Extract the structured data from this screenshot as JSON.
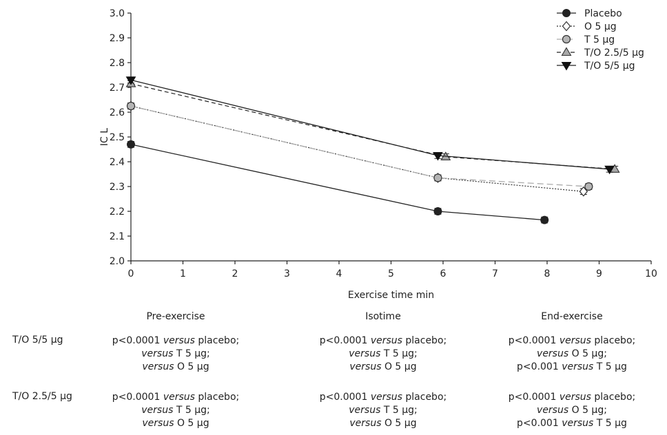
{
  "chart_data": {
    "type": "line",
    "xlabel": "Exercise time min",
    "ylabel": "IC L",
    "xlim": [
      0,
      10
    ],
    "ylim": [
      2.0,
      3.0
    ],
    "x_ticks": [
      "0",
      "1",
      "2",
      "3",
      "4",
      "5",
      "6",
      "7",
      "8",
      "9",
      "10"
    ],
    "y_ticks": [
      "2.0",
      "2.1",
      "2.2",
      "2.3",
      "2.4",
      "2.5",
      "2.6",
      "2.7",
      "2.8",
      "2.9",
      "3.0"
    ],
    "legend_position": "top-right",
    "series": [
      {
        "name": "Placebo",
        "color": "#222222",
        "marker": "circle-filled",
        "line": "solid",
        "points": [
          {
            "x": 0,
            "y": 2.47
          },
          {
            "x": 5.9,
            "y": 2.2
          },
          {
            "x": 7.95,
            "y": 2.165
          }
        ],
        "errors": [
          0.012,
          0.012,
          0.012
        ]
      },
      {
        "name": "O 5 µg",
        "color": "#444444",
        "marker": "diamond-open",
        "line": "dotted",
        "points": [
          {
            "x": 0,
            "y": 2.625
          },
          {
            "x": 5.9,
            "y": 2.335
          },
          {
            "x": 8.7,
            "y": 2.28
          }
        ],
        "errors": [
          0.012,
          0.012,
          0.012
        ]
      },
      {
        "name": "T 5 µg",
        "color": "#aaaaaa",
        "marker": "circle-gray",
        "line": "solid-light",
        "points": [
          {
            "x": 0,
            "y": 2.625
          },
          {
            "x": 5.9,
            "y": 2.335
          },
          {
            "x": 8.8,
            "y": 2.3
          }
        ],
        "errors": [
          0.012,
          0.012,
          0.012
        ]
      },
      {
        "name": "T/O 2.5/5 µg",
        "color": "#333333",
        "marker": "triangle-up-gray",
        "line": "dashed",
        "points": [
          {
            "x": 0,
            "y": 2.715
          },
          {
            "x": 6.05,
            "y": 2.42
          },
          {
            "x": 9.3,
            "y": 2.37
          }
        ],
        "errors": [
          0.012,
          0.012,
          0.012
        ]
      },
      {
        "name": "T/O 5/5 µg",
        "color": "#111111",
        "marker": "triangle-down-filled",
        "line": "solid",
        "points": [
          {
            "x": 0,
            "y": 2.73
          },
          {
            "x": 5.9,
            "y": 2.425
          },
          {
            "x": 9.2,
            "y": 2.37
          }
        ],
        "errors": [
          0.012,
          0.012,
          0.012
        ]
      }
    ]
  },
  "stats": {
    "headers": [
      "Pre-exercise",
      "Isotime",
      "End-exercise"
    ],
    "rows": [
      {
        "label": "T/O 5/5 µg",
        "cells": [
          [
            "p<0.0001 versus placebo;",
            "versus T 5 µg;",
            "versus O 5 µg"
          ],
          [
            "p<0.0001 versus placebo;",
            "versus T 5 µg;",
            "versus O 5 µg"
          ],
          [
            "p<0.0001 versus placebo;",
            "versus O 5 µg;",
            "p<0.001 versus T 5 µg"
          ]
        ]
      },
      {
        "label": "T/O 2.5/5 µg",
        "cells": [
          [
            "p<0.0001 versus placebo;",
            "versus T 5 µg;",
            "versus O 5 µg"
          ],
          [
            "p<0.0001 versus placebo;",
            "versus T 5 µg;",
            "versus O 5 µg"
          ],
          [
            "p<0.0001 versus placebo;",
            "versus O 5 µg;",
            "p<0.001 versus T 5 µg"
          ]
        ]
      }
    ]
  }
}
